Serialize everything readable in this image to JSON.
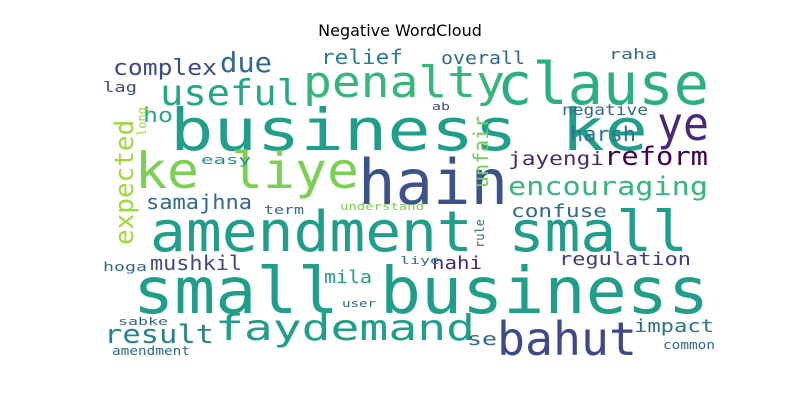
{
  "title": "Negative WordCloud",
  "chart_data": {
    "type": "wordcloud",
    "title": "Negative WordCloud",
    "words": [
      {
        "text": "small business",
        "color": "#1f9e89",
        "vertical": false
      },
      {
        "text": "amendment small",
        "color": "#1f9e89",
        "vertical": false
      },
      {
        "text": "business ke",
        "color": "#1f9e89",
        "vertical": false
      },
      {
        "text": "clause",
        "color": "#2ab07f",
        "vertical": false
      },
      {
        "text": "hain",
        "color": "#3b528b",
        "vertical": false
      },
      {
        "text": "ke liye",
        "color": "#7ad151",
        "vertical": false
      },
      {
        "text": "penalty",
        "color": "#35b779",
        "vertical": false
      },
      {
        "text": "useful",
        "color": "#22a884",
        "vertical": false
      },
      {
        "text": "faydemand",
        "color": "#1f9e89",
        "vertical": false
      },
      {
        "text": "bahut",
        "color": "#3e4989",
        "vertical": false
      },
      {
        "text": "ye",
        "color": "#482878",
        "vertical": false
      },
      {
        "text": "encouraging",
        "color": "#35b779",
        "vertical": false
      },
      {
        "text": "expected",
        "color": "#a0da39",
        "vertical": true
      },
      {
        "text": "reform",
        "color": "#440154",
        "vertical": false
      },
      {
        "text": "complex",
        "color": "#3e4989",
        "vertical": false
      },
      {
        "text": "due",
        "color": "#31688e",
        "vertical": false
      },
      {
        "text": "result",
        "color": "#26828e",
        "vertical": false
      },
      {
        "text": "mushkil",
        "color": "#3e4989",
        "vertical": false
      },
      {
        "text": "samajhna",
        "color": "#31688e",
        "vertical": false
      },
      {
        "text": "harsh",
        "color": "#2c728e",
        "vertical": false
      },
      {
        "text": "jayengi",
        "color": "#482878",
        "vertical": false
      },
      {
        "text": "unfair",
        "color": "#6ece58",
        "vertical": true
      },
      {
        "text": "confuse",
        "color": "#31688e",
        "vertical": false
      },
      {
        "text": "regulation",
        "color": "#443983",
        "vertical": false
      },
      {
        "text": "impact",
        "color": "#2c728e",
        "vertical": false
      },
      {
        "text": "relief",
        "color": "#26828e",
        "vertical": false
      },
      {
        "text": "overall",
        "color": "#31688e",
        "vertical": false
      },
      {
        "text": "mila",
        "color": "#1fa187",
        "vertical": false
      },
      {
        "text": "nahi",
        "color": "#482878",
        "vertical": false
      },
      {
        "text": "ho",
        "color": "#22a884",
        "vertical": false
      },
      {
        "text": "se",
        "color": "#31688e",
        "vertical": false
      },
      {
        "text": "lag",
        "color": "#3e4989",
        "vertical": false
      },
      {
        "text": "raha",
        "color": "#31688e",
        "vertical": false
      },
      {
        "text": "negative",
        "color": "#31688e",
        "vertical": false
      },
      {
        "text": "easy",
        "color": "#21918c",
        "vertical": false
      },
      {
        "text": "term",
        "color": "#31688e",
        "vertical": false
      },
      {
        "text": "understand",
        "color": "#7ad151",
        "vertical": false
      },
      {
        "text": "ab",
        "color": "#3e4989",
        "vertical": false
      },
      {
        "text": "long",
        "color": "#a0da39",
        "vertical": true
      },
      {
        "text": "rule",
        "color": "#31688e",
        "vertical": true
      },
      {
        "text": "liye",
        "color": "#2c728e",
        "vertical": false
      },
      {
        "text": "hoga",
        "color": "#31688e",
        "vertical": false
      },
      {
        "text": "user",
        "color": "#31688e",
        "vertical": false
      },
      {
        "text": "sabke",
        "color": "#31688e",
        "vertical": false
      },
      {
        "text": "amendment",
        "color": "#31688e",
        "vertical": false
      },
      {
        "text": "common",
        "color": "#31688e",
        "vertical": false
      }
    ]
  }
}
